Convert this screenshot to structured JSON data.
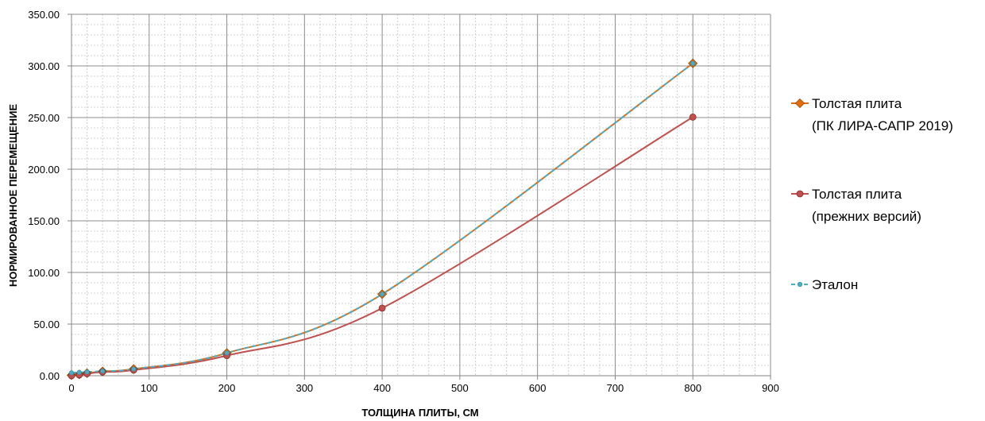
{
  "chart_data": {
    "type": "line",
    "title": "",
    "xlabel": "ТОЛЩИНА ПЛИТЫ, СМ",
    "ylabel": "НОРМИРОВАННОЕ ПЕРЕМЕЩЕНИЕ",
    "xlim": [
      0,
      900
    ],
    "ylim": [
      0,
      350
    ],
    "x_ticks": [
      "0",
      "100",
      "200",
      "300",
      "400",
      "500",
      "600",
      "700",
      "800",
      "900"
    ],
    "y_ticks": [
      "0.00",
      "50.00",
      "100.00",
      "150.00",
      "200.00",
      "250.00",
      "300.00",
      "350.00"
    ],
    "grid": true,
    "legend_position": "right",
    "series": [
      {
        "name_lines": [
          "Толстая плита",
          "(ПК ЛИРА-САПР 2019)"
        ],
        "color": "#e46c0a",
        "marker": "diamond",
        "x": [
          0,
          10,
          20,
          40,
          80,
          200,
          400,
          800
        ],
        "y": [
          0.5,
          1.3,
          2.5,
          4.2,
          6.5,
          22.0,
          79.0,
          302.5
        ]
      },
      {
        "name_lines": [
          "Толстая плита",
          "(прежних версий)"
        ],
        "color": "#c0504d",
        "marker": "circle",
        "x": [
          0,
          10,
          20,
          40,
          80,
          200,
          400,
          800
        ],
        "y": [
          0.0,
          0.8,
          2.0,
          3.6,
          5.5,
          19.5,
          65.5,
          250.5
        ]
      },
      {
        "name_lines": [
          "Эталон"
        ],
        "color": "#4bacc6",
        "marker": "dot",
        "dashed": true,
        "x": [
          0,
          10,
          20,
          40,
          80,
          200,
          400,
          800
        ],
        "y": [
          2.8,
          3.2,
          3.6,
          4.5,
          6.5,
          22.0,
          79.0,
          302.5
        ]
      }
    ]
  }
}
